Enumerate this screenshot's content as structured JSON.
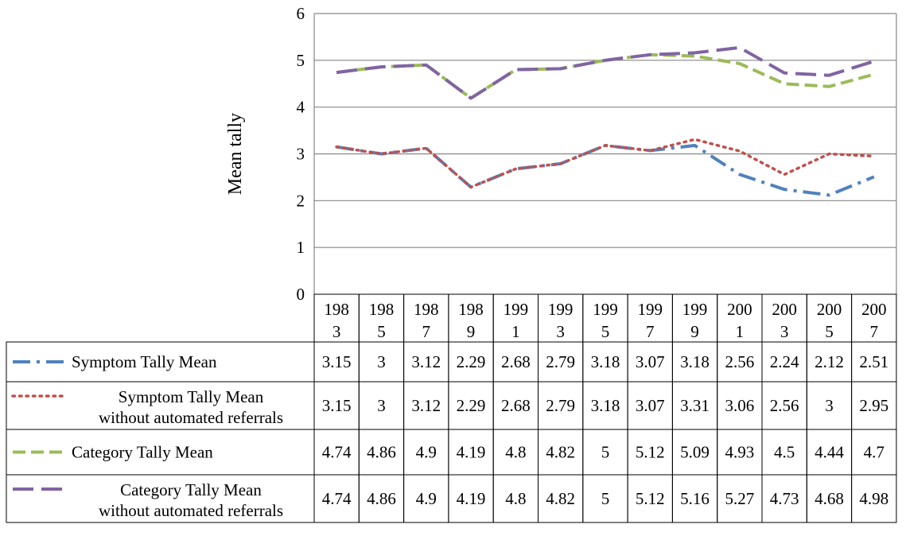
{
  "chart_data": {
    "type": "line",
    "ylabel": "Mean tally",
    "ylim": [
      0,
      6
    ],
    "yticks": [
      0,
      1,
      2,
      3,
      4,
      5,
      6
    ],
    "grid": true,
    "legend": "data table below chart",
    "categories": [
      [
        "198",
        "3"
      ],
      [
        "198",
        "5"
      ],
      [
        "198",
        "7"
      ],
      [
        "198",
        "9"
      ],
      [
        "199",
        "1"
      ],
      [
        "199",
        "3"
      ],
      [
        "199",
        "5"
      ],
      [
        "199",
        "7"
      ],
      [
        "199",
        "9"
      ],
      [
        "200",
        "1"
      ],
      [
        "200",
        "3"
      ],
      [
        "200",
        "5"
      ],
      [
        "200",
        "7"
      ]
    ],
    "x": [
      1983,
      1985,
      1987,
      1989,
      1991,
      1993,
      1995,
      1997,
      1999,
      2001,
      2003,
      2005,
      2007
    ],
    "series": [
      {
        "name": "Symptom Tally Mean",
        "name_lines": [
          "Symptom Tally Mean"
        ],
        "color": "#4F81BD",
        "style": "dash-dot",
        "values": [
          3.15,
          3,
          3.12,
          2.29,
          2.68,
          2.79,
          3.18,
          3.07,
          3.18,
          2.56,
          2.24,
          2.12,
          2.51
        ]
      },
      {
        "name": "Symptom Tally Mean without automated referrals",
        "name_lines": [
          "Symptom Tally Mean",
          "without automated referrals"
        ],
        "color": "#C0504D",
        "style": "dotted",
        "values": [
          3.15,
          3,
          3.12,
          2.29,
          2.68,
          2.79,
          3.18,
          3.07,
          3.31,
          3.06,
          2.56,
          3,
          2.95
        ]
      },
      {
        "name": "Category Tally Mean",
        "name_lines": [
          "Category Tally Mean"
        ],
        "color": "#9BBB59",
        "style": "dashed",
        "values": [
          4.74,
          4.86,
          4.9,
          4.19,
          4.8,
          4.82,
          5,
          5.12,
          5.09,
          4.93,
          4.5,
          4.44,
          4.7
        ]
      },
      {
        "name": "Category Tally Mean without automated referrals",
        "name_lines": [
          "Category Tally Mean",
          "without automated referrals"
        ],
        "color": "#8064A2",
        "style": "long-dash",
        "values": [
          4.74,
          4.86,
          4.9,
          4.19,
          4.8,
          4.82,
          5,
          5.12,
          5.16,
          5.27,
          4.73,
          4.68,
          4.98
        ]
      }
    ]
  }
}
